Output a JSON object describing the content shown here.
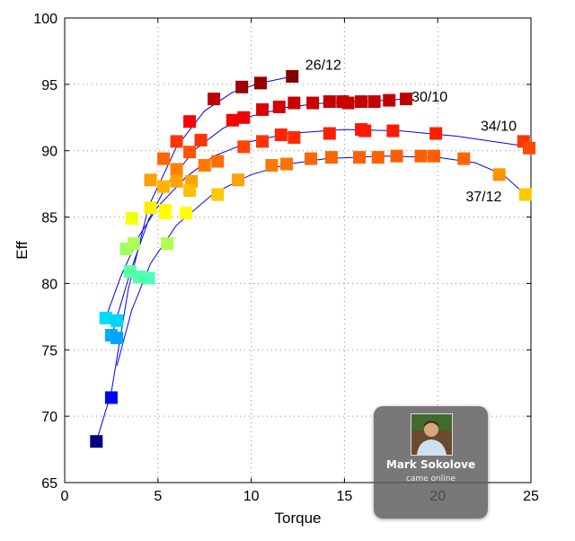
{
  "chart_data": {
    "type": "scatter",
    "title": "",
    "xlabel": "Torque",
    "ylabel": "Eff",
    "xlim": [
      0,
      25
    ],
    "ylim": [
      65,
      100
    ],
    "xticks": [
      "0",
      "5",
      "10",
      "15",
      "20",
      "25"
    ],
    "yticks": [
      "65",
      "70",
      "75",
      "80",
      "85",
      "90",
      "95",
      "100"
    ],
    "grid": "dotted",
    "series": [
      {
        "name": "26/12",
        "points": [
          [
            1.7,
            68.1
          ],
          [
            2.5,
            71.4
          ],
          [
            3.3,
            82.6
          ],
          [
            3.7,
            83.0
          ],
          [
            5.3,
            89.4
          ],
          [
            6.0,
            90.7
          ],
          [
            6.7,
            92.2
          ],
          [
            8.0,
            93.9
          ],
          [
            9.5,
            94.8
          ],
          [
            10.5,
            95.1
          ],
          [
            12.2,
            95.6
          ]
        ],
        "curve": [
          [
            1.7,
            68.1
          ],
          [
            2.5,
            71.8
          ],
          [
            3.4,
            79.5
          ],
          [
            4.5,
            85.8
          ],
          [
            6.0,
            90.3
          ],
          [
            7.5,
            93.0
          ],
          [
            9.0,
            94.4
          ],
          [
            10.5,
            95.1
          ],
          [
            12.2,
            95.6
          ]
        ]
      },
      {
        "name": "30/10",
        "points": [
          [
            2.5,
            76.1
          ],
          [
            2.8,
            75.9
          ],
          [
            3.5,
            80.9
          ],
          [
            4.0,
            80.5
          ],
          [
            4.5,
            80.4
          ],
          [
            5.3,
            87.3
          ],
          [
            6.0,
            88.6
          ],
          [
            6.7,
            89.9
          ],
          [
            7.3,
            90.8
          ],
          [
            9.0,
            92.3
          ],
          [
            9.6,
            92.5
          ],
          [
            10.6,
            93.1
          ],
          [
            11.5,
            93.3
          ],
          [
            12.3,
            93.6
          ],
          [
            13.3,
            93.6
          ],
          [
            14.2,
            93.7
          ],
          [
            14.9,
            93.7
          ],
          [
            15.2,
            93.6
          ],
          [
            15.9,
            93.7
          ],
          [
            16.6,
            93.7
          ],
          [
            17.4,
            93.8
          ],
          [
            18.3,
            93.9
          ]
        ],
        "curve": [
          [
            2.5,
            76.0
          ],
          [
            3.5,
            80.8
          ],
          [
            4.5,
            84.8
          ],
          [
            5.5,
            87.5
          ],
          [
            7.0,
            90.1
          ],
          [
            8.5,
            91.7
          ],
          [
            10.0,
            92.6
          ],
          [
            12.0,
            93.3
          ],
          [
            14.0,
            93.6
          ],
          [
            16.0,
            93.7
          ],
          [
            18.3,
            93.9
          ]
        ]
      },
      {
        "name": "34/10",
        "points": [
          [
            2.2,
            77.4
          ],
          [
            2.8,
            77.2
          ],
          [
            3.6,
            84.9
          ],
          [
            4.6,
            85.7
          ],
          [
            5.4,
            85.5
          ],
          [
            6.0,
            87.7
          ],
          [
            6.8,
            87.7
          ],
          [
            7.5,
            88.9
          ],
          [
            8.2,
            89.2
          ],
          [
            9.6,
            90.3
          ],
          [
            10.6,
            90.7
          ],
          [
            11.6,
            91.2
          ],
          [
            12.3,
            91.0
          ],
          [
            14.2,
            91.3
          ],
          [
            15.9,
            91.6
          ],
          [
            16.1,
            91.5
          ],
          [
            17.6,
            91.5
          ],
          [
            19.9,
            91.3
          ],
          [
            24.6,
            90.7
          ],
          [
            24.9,
            90.2
          ]
        ],
        "curve": [
          [
            2.2,
            77.4
          ],
          [
            3.0,
            80.5
          ],
          [
            4.0,
            83.6
          ],
          [
            5.0,
            85.8
          ],
          [
            6.5,
            88.0
          ],
          [
            8.0,
            89.6
          ],
          [
            10.0,
            90.7
          ],
          [
            12.0,
            91.3
          ],
          [
            15.0,
            91.6
          ],
          [
            18.0,
            91.5
          ],
          [
            21.0,
            91.1
          ],
          [
            24.9,
            90.3
          ]
        ]
      },
      {
        "name": "37/12",
        "points": [
          [
            4.6,
            87.8
          ],
          [
            5.4,
            85.3
          ],
          [
            5.5,
            83.0
          ],
          [
            6.5,
            85.3
          ],
          [
            6.7,
            87.0
          ],
          [
            8.2,
            86.7
          ],
          [
            9.3,
            87.8
          ],
          [
            11.1,
            88.9
          ],
          [
            11.9,
            89.0
          ],
          [
            13.2,
            89.4
          ],
          [
            14.3,
            89.5
          ],
          [
            15.8,
            89.5
          ],
          [
            16.8,
            89.5
          ],
          [
            17.8,
            89.6
          ],
          [
            19.1,
            89.6
          ],
          [
            19.8,
            89.6
          ],
          [
            21.4,
            89.4
          ],
          [
            23.3,
            88.2
          ],
          [
            24.7,
            86.7
          ]
        ],
        "curve": [
          [
            2.8,
            73.8
          ],
          [
            3.6,
            78.0
          ],
          [
            4.6,
            81.5
          ],
          [
            6.0,
            84.4
          ],
          [
            8.0,
            86.8
          ],
          [
            10.0,
            88.2
          ],
          [
            12.0,
            89.0
          ],
          [
            14.0,
            89.4
          ],
          [
            17.0,
            89.6
          ],
          [
            20.0,
            89.5
          ],
          [
            22.0,
            89.1
          ],
          [
            23.5,
            88.2
          ],
          [
            24.7,
            86.7
          ]
        ]
      }
    ],
    "labels": [
      {
        "text": "26/12",
        "x": 12.9,
        "y": 96.1
      },
      {
        "text": "30/10",
        "x": 18.6,
        "y": 93.7
      },
      {
        "text": "34/10",
        "x": 22.3,
        "y": 91.5
      },
      {
        "text": "37/12",
        "x": 21.5,
        "y": 86.2
      }
    ],
    "colors": {
      "curve": "#0000ee",
      "grid": "#8a8a8a",
      "colormap": "jet"
    }
  },
  "notification": {
    "name": "Mark Sokolove",
    "status": "came online"
  }
}
